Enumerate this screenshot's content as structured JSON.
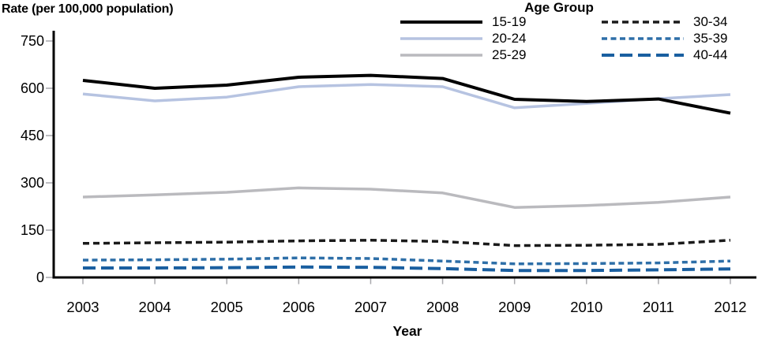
{
  "page": {
    "background": "#ffffff"
  },
  "chart_data": {
    "type": "line",
    "title": "",
    "ylabel": "Rate (per 100,000 population)",
    "xlabel": "Year",
    "legend_title": "Age Group",
    "x": [
      2003,
      2004,
      2005,
      2006,
      2007,
      2008,
      2009,
      2010,
      2011,
      2012
    ],
    "y_ticks": [
      0,
      150,
      300,
      450,
      600,
      750
    ],
    "ylim": [
      0,
      790
    ],
    "grid": false,
    "legend_position": "top-center-two-columns",
    "axis_color": "#000000",
    "tick_color": "#a9a9ad",
    "series": [
      {
        "name": "15-19",
        "color": "#000000",
        "style": "solid",
        "width": 4,
        "values": [
          625,
          600,
          610,
          635,
          641,
          631,
          565,
          558,
          566,
          521
        ]
      },
      {
        "name": "20-24",
        "color": "#b6c3e1",
        "style": "solid",
        "width": 3.5,
        "values": [
          582,
          560,
          572,
          605,
          612,
          605,
          538,
          552,
          567,
          580
        ]
      },
      {
        "name": "25-29",
        "color": "#bababe",
        "style": "solid",
        "width": 3.5,
        "values": [
          255,
          262,
          270,
          284,
          280,
          268,
          222,
          228,
          238,
          255
        ]
      },
      {
        "name": "30-34",
        "color": "#1a1a1a",
        "style": "dashed",
        "dash": "8 5",
        "width": 3.5,
        "values": [
          108,
          110,
          112,
          116,
          118,
          114,
          101,
          102,
          105,
          118
        ]
      },
      {
        "name": "35-39",
        "color": "#2e6fa8",
        "style": "dashed",
        "dash": "7 4.5",
        "width": 3.5,
        "values": [
          55,
          56,
          58,
          62,
          60,
          52,
          43,
          44,
          46,
          52
        ]
      },
      {
        "name": "40-44",
        "color": "#1a5fa0",
        "style": "long-dash",
        "dash": "16 7",
        "width": 4,
        "values": [
          30,
          30,
          31,
          33,
          32,
          28,
          22,
          22,
          24,
          27
        ]
      }
    ],
    "legend_columns": [
      [
        "15-19",
        "20-24",
        "25-29"
      ],
      [
        "30-34",
        "35-39",
        "40-44"
      ]
    ]
  }
}
